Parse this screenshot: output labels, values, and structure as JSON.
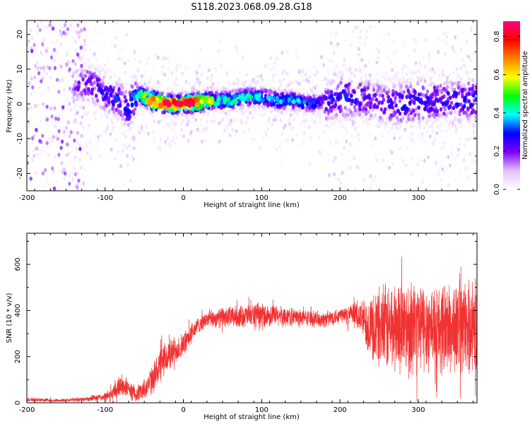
{
  "title": "S118.2023.068.09.28.G18",
  "chart_data": [
    {
      "type": "heatmap",
      "xlabel": "Height of straight line (km)",
      "ylabel": "Frequency (Hz)",
      "xlim": [
        -200,
        375
      ],
      "ylim": [
        -25,
        24
      ],
      "xticks": [
        -200,
        -100,
        0,
        100,
        200,
        300
      ],
      "yticks": [
        -20,
        -10,
        0,
        10,
        20
      ],
      "colorbar": {
        "label": "Normalized spectral amplitude",
        "range": [
          0,
          0.88
        ],
        "ticks": [
          0.0,
          0.2,
          0.4,
          0.6,
          0.8
        ],
        "colors": [
          "#ffffff",
          "#e0c0ff",
          "#8000ff",
          "#0000ff",
          "#00ffff",
          "#00ff00",
          "#ffff00",
          "#ff8000",
          "#ff0000",
          "#ff0080"
        ]
      },
      "ridge": {
        "x": [
          -140,
          -120,
          -100,
          -80,
          -70,
          -60,
          -40,
          -20,
          0,
          20,
          40,
          60,
          80,
          100,
          120,
          140,
          160,
          180,
          200,
          220,
          240,
          260,
          280,
          300,
          320,
          340,
          360,
          375
        ],
        "freq": [
          5,
          6,
          3,
          1,
          -2,
          3,
          1,
          0,
          0,
          0.5,
          1,
          1,
          2,
          2,
          1,
          1,
          0,
          0.5,
          2,
          2,
          1,
          0,
          0,
          1,
          1,
          1,
          1,
          1
        ],
        "peak_amplitude": [
          0.2,
          0.25,
          0.3,
          0.3,
          0.35,
          0.4,
          0.85,
          0.85,
          0.85,
          0.8,
          0.5,
          0.45,
          0.45,
          0.4,
          0.4,
          0.4,
          0.35,
          0.3,
          0.3,
          0.3,
          0.25,
          0.25,
          0.3,
          0.3,
          0.3,
          0.3,
          0.3,
          0.3
        ]
      }
    },
    {
      "type": "line",
      "xlabel": "Height of straight line (km)",
      "ylabel": "SNR (10 * v/v)",
      "color": "#f03232",
      "xlim": [
        -200,
        375
      ],
      "ylim": [
        0,
        735
      ],
      "xticks": [
        -200,
        -100,
        0,
        100,
        200,
        300
      ],
      "yticks": [
        0,
        200,
        400,
        600
      ],
      "envelope": {
        "x": [
          -200,
          -160,
          -130,
          -100,
          -90,
          -80,
          -70,
          -60,
          -50,
          -40,
          -30,
          -20,
          -10,
          0,
          10,
          20,
          30,
          50,
          100,
          150,
          180,
          200,
          220,
          230,
          240,
          260,
          280,
          300,
          320,
          340,
          360,
          375
        ],
        "mean": [
          15,
          10,
          15,
          25,
          40,
          80,
          60,
          40,
          60,
          100,
          160,
          200,
          230,
          250,
          300,
          340,
          360,
          370,
          380,
          370,
          360,
          380,
          380,
          360,
          330,
          320,
          340,
          330,
          330,
          320,
          330,
          330
        ],
        "spread": [
          10,
          8,
          10,
          20,
          40,
          60,
          40,
          40,
          50,
          70,
          90,
          80,
          70,
          60,
          50,
          40,
          40,
          50,
          60,
          40,
          40,
          40,
          60,
          100,
          180,
          220,
          230,
          230,
          220,
          230,
          220,
          220
        ]
      }
    }
  ]
}
